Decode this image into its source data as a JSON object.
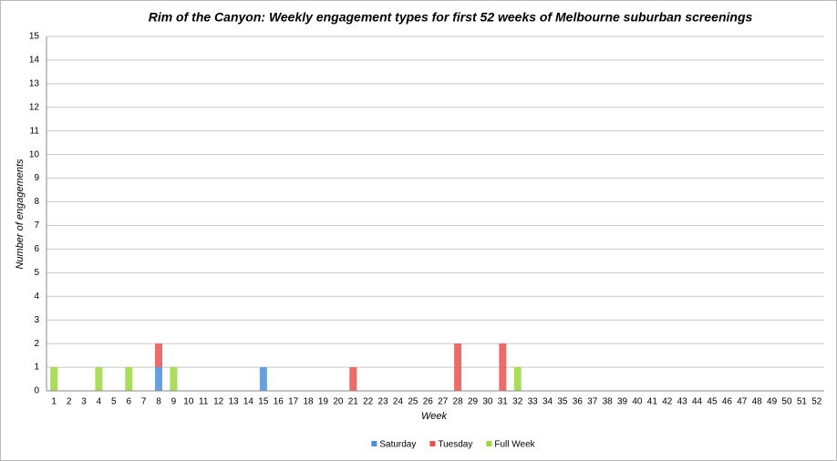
{
  "chart_data": {
    "type": "stacked_bar",
    "title": "Rim of the Canyon: Weekly engagement types for first 52 weeks of Melbourne suburban screenings",
    "x_label": "Week",
    "y_label": "Number of engagements",
    "categories": [
      "1",
      "2",
      "3",
      "4",
      "5",
      "6",
      "7",
      "8",
      "9",
      "10",
      "11",
      "12",
      "13",
      "14",
      "15",
      "16",
      "17",
      "18",
      "19",
      "20",
      "21",
      "22",
      "23",
      "24",
      "25",
      "26",
      "27",
      "28",
      "29",
      "30",
      "31",
      "32",
      "33",
      "34",
      "35",
      "36",
      "37",
      "38",
      "39",
      "40",
      "41",
      "42",
      "43",
      "44",
      "45",
      "46",
      "47",
      "48",
      "49",
      "50",
      "51",
      "52"
    ],
    "series": [
      {
        "name": "Saturday",
        "color": "#4a8fdc",
        "values": [
          0,
          0,
          0,
          0,
          0,
          0,
          0,
          1,
          0,
          0,
          0,
          0,
          0,
          0,
          1,
          0,
          0,
          0,
          0,
          0,
          0,
          0,
          0,
          0,
          0,
          0,
          0,
          0,
          0,
          0,
          0,
          0,
          0,
          0,
          0,
          0,
          0,
          0,
          0,
          0,
          0,
          0,
          0,
          0,
          0,
          0,
          0,
          0,
          0,
          0,
          0,
          0
        ]
      },
      {
        "name": "Tuesday",
        "color": "#e9524f",
        "values": [
          0,
          0,
          0,
          0,
          0,
          0,
          0,
          1,
          0,
          0,
          0,
          0,
          0,
          0,
          0,
          0,
          0,
          0,
          0,
          0,
          1,
          0,
          0,
          0,
          0,
          0,
          0,
          2,
          0,
          0,
          2,
          0,
          0,
          0,
          0,
          0,
          0,
          0,
          0,
          0,
          0,
          0,
          0,
          0,
          0,
          0,
          0,
          0,
          0,
          0,
          0,
          0
        ]
      },
      {
        "name": "Full Week",
        "color": "#9cd741",
        "values": [
          1,
          0,
          0,
          1,
          0,
          1,
          0,
          0,
          1,
          0,
          0,
          0,
          0,
          0,
          0,
          0,
          0,
          0,
          0,
          0,
          0,
          0,
          0,
          0,
          0,
          0,
          0,
          0,
          0,
          0,
          0,
          1,
          0,
          0,
          0,
          0,
          0,
          0,
          0,
          0,
          0,
          0,
          0,
          0,
          0,
          0,
          0,
          0,
          0,
          0,
          0,
          0
        ]
      }
    ],
    "ylim": [
      0,
      15
    ],
    "yticks": [
      0,
      1,
      2,
      3,
      4,
      5,
      6,
      7,
      8,
      9,
      10,
      11,
      12,
      13,
      14,
      15
    ],
    "grid": true,
    "legend": "bottom"
  }
}
